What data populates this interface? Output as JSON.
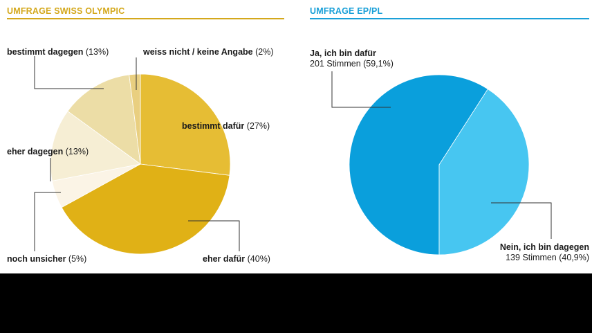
{
  "colors": {
    "left_accent": "#d4a81c",
    "right_accent": "#1aa0d8",
    "leader": "#333333",
    "band": "#000000"
  },
  "chart_data": [
    {
      "type": "pie",
      "title": "UMFRAGE SWISS OLYMPIC",
      "slices": [
        {
          "name": "bestimmt dafür",
          "value": 27,
          "pct_label": "(27%)",
          "color": "#e6bd34"
        },
        {
          "name": "eher dafür",
          "value": 40,
          "pct_label": "(40%)",
          "color": "#e0b116"
        },
        {
          "name": "noch unsicher",
          "value": 5,
          "pct_label": "(5%)",
          "color": "#fbf4e6"
        },
        {
          "name": "eher dagegen",
          "value": 13,
          "pct_label": "(13%)",
          "color": "#f6eed4"
        },
        {
          "name": "bestimmt dagegen",
          "value": 13,
          "pct_label": "(13%)",
          "color": "#ecdda6"
        },
        {
          "name": "weiss nicht / keine Angabe",
          "value": 2,
          "pct_label": "(2%)",
          "color": "#e9cf80"
        }
      ]
    },
    {
      "type": "pie",
      "title": "UMFRAGE EP/PL",
      "slices": [
        {
          "name": "Ja, ich bin dafür",
          "value": 59.1,
          "detail": "201 Stimmen (59,1%)",
          "color": "#0a9fdc"
        },
        {
          "name": "Nein, ich bin dagegen",
          "value": 40.9,
          "detail": "139 Stimmen (40,9%)",
          "color": "#47c6f1"
        }
      ]
    }
  ]
}
